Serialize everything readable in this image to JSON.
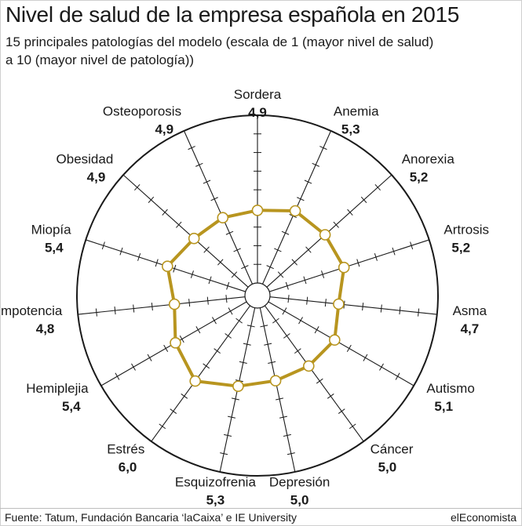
{
  "header": {
    "title": "Nivel de salud de la empresa española en 2015",
    "subtitle_line1": "15 principales patologías del modelo (escala de 1 (mayor nivel de salud)",
    "subtitle_line2": "a 10 (mayor nivel de patología))"
  },
  "footer": {
    "source": "Fuente: Tatum, Fundación Bancaria ‘laCaixa’ e IE University",
    "brand": "elEconomista"
  },
  "colors": {
    "series": "#b8951f",
    "axis": "#1a1a1a",
    "marker_fill": "#ffffff"
  },
  "chart_data": {
    "type": "radar",
    "scale": [
      1,
      10
    ],
    "categories": [
      "Sordera",
      "Anemia",
      "Anorexia",
      "Artrosis",
      "Asma",
      "Autismo",
      "Cáncer",
      "Depresión",
      "Esquizofrenia",
      "Estrés",
      "Hemiplejia",
      "Impotencia",
      "Miopía",
      "Obesidad",
      "Osteoporosis"
    ],
    "value_labels": [
      "4,9",
      "5,3",
      "5,2",
      "5,2",
      "4,7",
      "5,1",
      "5,0",
      "5,0",
      "5,3",
      "6,0",
      "5,4",
      "4,8",
      "5,4",
      "4,9",
      "4,9"
    ],
    "values": [
      4.9,
      5.3,
      5.2,
      5.2,
      4.7,
      5.1,
      5.0,
      5.0,
      5.3,
      6.0,
      5.4,
      4.8,
      5.4,
      4.9,
      4.9
    ],
    "legend": "none"
  }
}
